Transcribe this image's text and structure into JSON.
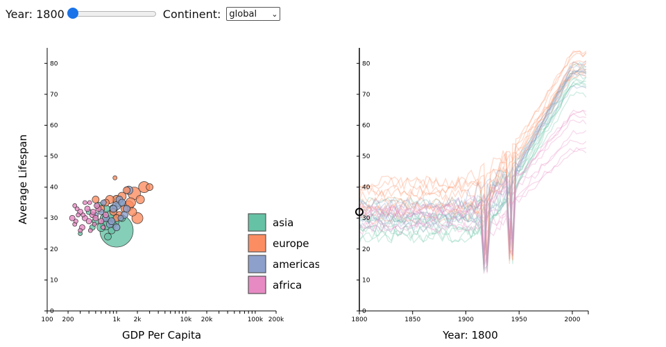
{
  "controls": {
    "year_label": "Year:",
    "year_value": "1800",
    "year_slider_fraction": 0.0,
    "slider_color": "#1a73e8",
    "continent_label": "Continent:",
    "continent_value": "global"
  },
  "chart_data": [
    {
      "type": "scatter",
      "xlabel": "GDP Per Capita",
      "ylabel": "Average Lifespan",
      "xscale": "log",
      "xlim": [
        100,
        200000
      ],
      "ylim": [
        0,
        85
      ],
      "x_tick_labels": [
        "100",
        "200",
        "1k",
        "2k",
        "10k",
        "20k",
        "100k",
        "200k"
      ],
      "x_tick_values": [
        100,
        200,
        1000,
        2000,
        10000,
        20000,
        100000,
        200000
      ],
      "y_ticks": [
        0,
        10,
        20,
        30,
        40,
        50,
        60,
        70,
        80
      ],
      "legend": [
        "asia",
        "europe",
        "americas",
        "africa"
      ],
      "colors": {
        "asia": "#66c2a5",
        "europe": "#fc8d62",
        "americas": "#8da0cb",
        "africa": "#e78ac3"
      },
      "legend_placement": "bottom-right",
      "series": [
        {
          "name": "asia",
          "points": [
            [
              1000,
              26,
              24
            ],
            [
              700,
              28,
              8
            ],
            [
              800,
              31,
              7
            ],
            [
              600,
              27,
              6
            ],
            [
              900,
              33,
              6
            ],
            [
              500,
              29,
              5
            ],
            [
              750,
              24,
              5
            ],
            [
              1100,
              35,
              6
            ],
            [
              650,
              30,
              5
            ],
            [
              850,
              26,
              5
            ],
            [
              550,
              34,
              5
            ],
            [
              950,
              29,
              6
            ],
            [
              1200,
              30,
              5
            ],
            [
              450,
              27,
              4
            ],
            [
              400,
              32,
              4
            ],
            [
              1000,
              36,
              6
            ],
            [
              720,
              33,
              5
            ],
            [
              880,
              28,
              5
            ],
            [
              300,
              25,
              3
            ]
          ]
        },
        {
          "name": "europe",
          "points": [
            [
              2500,
              40,
              8
            ],
            [
              1800,
              38,
              9
            ],
            [
              1500,
              34,
              7
            ],
            [
              2000,
              30,
              8
            ],
            [
              3000,
              40,
              5
            ],
            [
              1200,
              37,
              6
            ],
            [
              1000,
              36,
              6
            ],
            [
              1600,
              35,
              7
            ],
            [
              800,
              36,
              6
            ],
            [
              900,
              32,
              5
            ],
            [
              1300,
              33,
              5
            ],
            [
              1100,
              31,
              5
            ],
            [
              700,
              35,
              5
            ],
            [
              2200,
              36,
              6
            ],
            [
              950,
              43,
              3
            ],
            [
              500,
              36,
              5
            ],
            [
              600,
              33,
              5
            ],
            [
              1400,
              39,
              5
            ],
            [
              1700,
              32,
              6
            ],
            [
              1000,
              30,
              5
            ]
          ]
        },
        {
          "name": "americas",
          "points": [
            [
              1500,
              39,
              6
            ],
            [
              1100,
              36,
              5
            ],
            [
              900,
              33,
              5
            ],
            [
              1300,
              31,
              5
            ],
            [
              700,
              30,
              5
            ],
            [
              1000,
              34,
              6
            ],
            [
              800,
              28,
              5
            ],
            [
              600,
              32,
              4
            ],
            [
              1200,
              35,
              5
            ],
            [
              1000,
              27,
              5
            ],
            [
              850,
              29,
              5
            ],
            [
              500,
              31,
              4
            ],
            [
              1400,
              33,
              5
            ],
            [
              1150,
              30,
              4
            ],
            [
              650,
              35,
              4
            ]
          ]
        },
        {
          "name": "africa",
          "points": [
            [
              230,
              30,
              4
            ],
            [
              270,
              33,
              3
            ],
            [
              250,
              28,
              3
            ],
            [
              300,
              32,
              4
            ],
            [
              350,
              30,
              4
            ],
            [
              400,
              29,
              4
            ],
            [
              450,
              31,
              4
            ],
            [
              380,
              33,
              4
            ],
            [
              320,
              27,
              4
            ],
            [
              500,
              30,
              4
            ],
            [
              550,
              33,
              4
            ],
            [
              420,
              26,
              3
            ],
            [
              600,
              29,
              4
            ],
            [
              350,
              35,
              3
            ],
            [
              280,
              31,
              3
            ],
            [
              480,
              28,
              3
            ],
            [
              260,
              29,
              3
            ],
            [
              520,
              34,
              4
            ],
            [
              330,
              31,
              3
            ],
            [
              700,
              31,
              4
            ],
            [
              640,
              27,
              3
            ],
            [
              460,
              32,
              4
            ],
            [
              410,
              35,
              3
            ],
            [
              250,
              34,
              3
            ],
            [
              300,
              26,
              3
            ]
          ]
        }
      ]
    },
    {
      "type": "line",
      "xlabel": "Year: 1800",
      "ylabel": "",
      "xlim": [
        1800,
        2015
      ],
      "ylim": [
        0,
        85
      ],
      "x_ticks": [
        1800,
        1850,
        1900,
        1950,
        2000
      ],
      "y_ticks": [
        0,
        10,
        20,
        30,
        40,
        50,
        60,
        70,
        80
      ],
      "marker_year": 1800,
      "marker_value": 32,
      "series": [
        {
          "name": "asia",
          "count": 10,
          "base": [
            24,
            36
          ],
          "end": [
            70,
            82
          ]
        },
        {
          "name": "europe",
          "count": 10,
          "base": [
            30,
            42
          ],
          "end": [
            76,
            84
          ]
        },
        {
          "name": "americas",
          "count": 8,
          "base": [
            27,
            35
          ],
          "end": [
            72,
            80
          ]
        },
        {
          "name": "africa",
          "count": 8,
          "base": [
            26,
            34
          ],
          "end": [
            50,
            66
          ]
        }
      ]
    }
  ]
}
